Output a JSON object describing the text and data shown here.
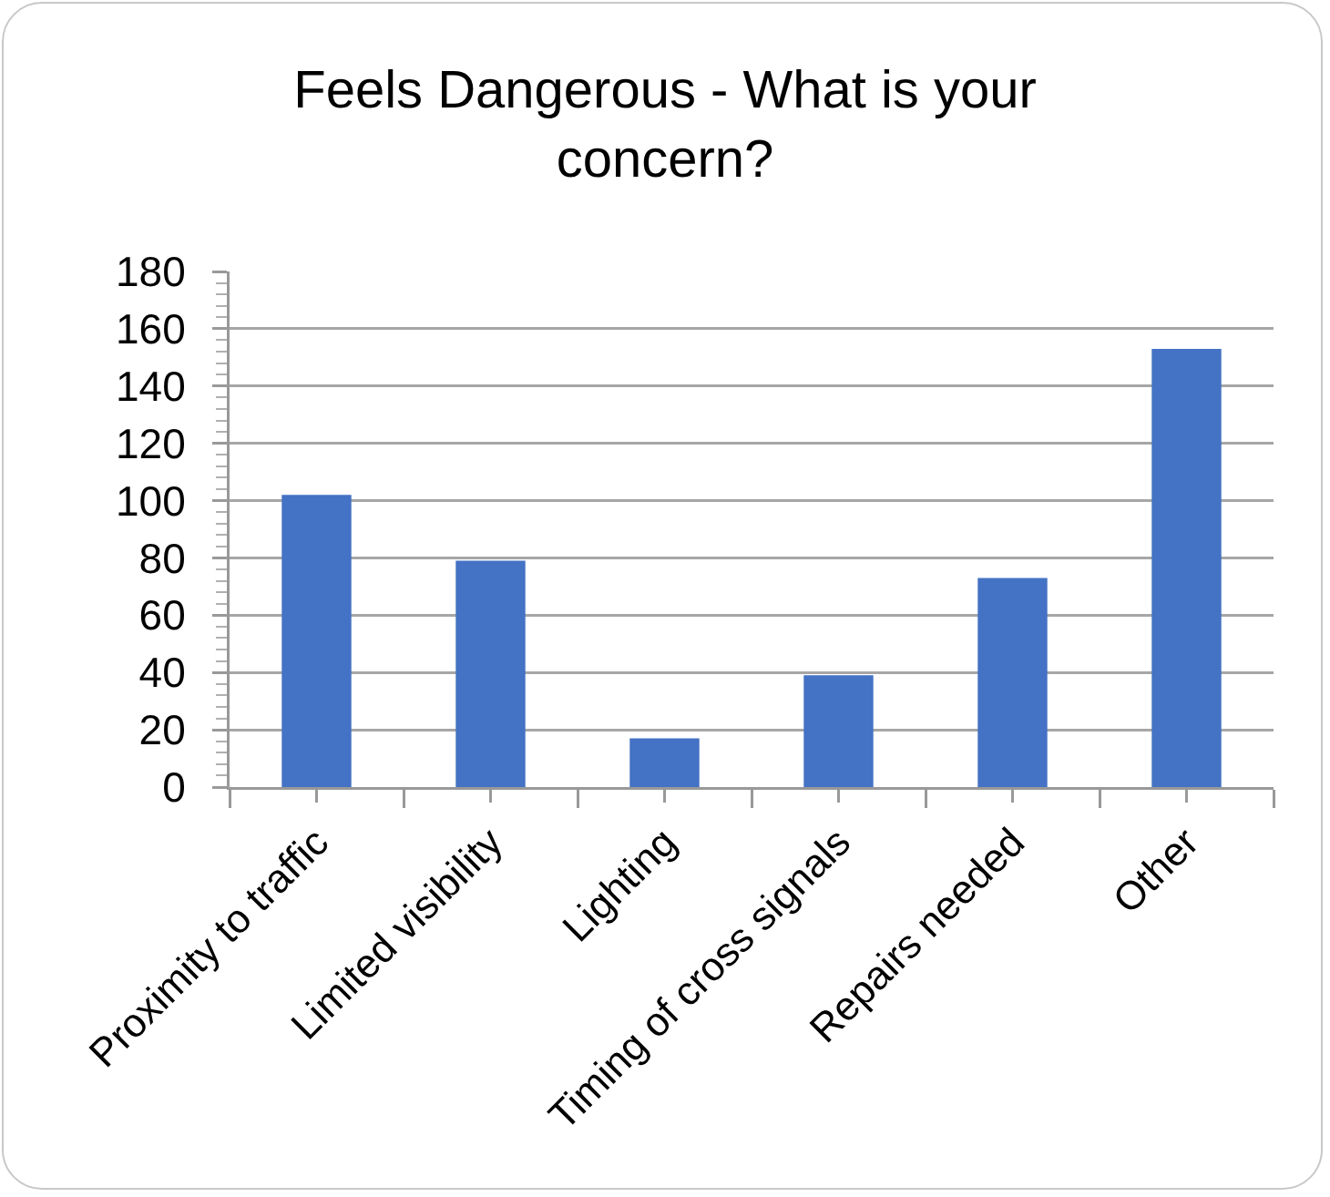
{
  "chart_data": {
    "type": "bar",
    "title": "Feels Dangerous - What is your concern?",
    "categories": [
      "Proximity to traffic",
      "Limited visibility",
      "Lighting",
      "Timing of cross signals",
      "Repairs needed",
      "Other"
    ],
    "values": [
      102,
      79,
      17,
      39,
      73,
      153
    ],
    "color": "#4472c4",
    "ylim": [
      0,
      180
    ],
    "yticks": [
      0,
      20,
      40,
      60,
      80,
      100,
      120,
      140,
      160,
      180
    ],
    "grid": "y"
  }
}
